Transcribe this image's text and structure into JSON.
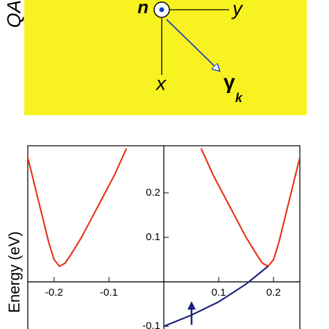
{
  "diagram": {
    "side_label": "QA",
    "n_label": "n",
    "y_label": "y",
    "x_label": "x",
    "gamma_label": "γ",
    "gamma_subscript": "k"
  },
  "chart_data": {
    "type": "line",
    "ylabel": "Energy (eV)",
    "xlim": [
      -0.248,
      0.248
    ],
    "ylim": [
      -0.106,
      0.306
    ],
    "xticks": [
      -0.2,
      -0.1,
      0.1,
      0.2
    ],
    "yticks": [
      -0.1,
      0.1,
      0.2
    ],
    "series": [
      {
        "color": "#e8341c",
        "x": [
          -0.25,
          -0.23,
          -0.21,
          -0.2,
          -0.19,
          -0.18,
          -0.17,
          -0.15,
          -0.12,
          -0.09,
          -0.068
        ],
        "values": [
          0.29,
          0.19,
          0.09,
          0.05,
          0.035,
          0.042,
          0.06,
          0.1,
          0.17,
          0.24,
          0.3
        ]
      },
      {
        "color": "#e8341c",
        "x": [
          0.068,
          0.09,
          0.12,
          0.15,
          0.17,
          0.18,
          0.19,
          0.2,
          0.21,
          0.23,
          0.25
        ],
        "values": [
          0.3,
          0.24,
          0.17,
          0.1,
          0.06,
          0.042,
          0.035,
          0.05,
          0.09,
          0.19,
          0.29
        ]
      },
      {
        "color": "#1a237e",
        "x": [
          0,
          0.05,
          0.1,
          0.15,
          0.19
        ],
        "values": [
          -0.1,
          -0.075,
          -0.045,
          -0.005,
          0.035
        ]
      }
    ]
  }
}
